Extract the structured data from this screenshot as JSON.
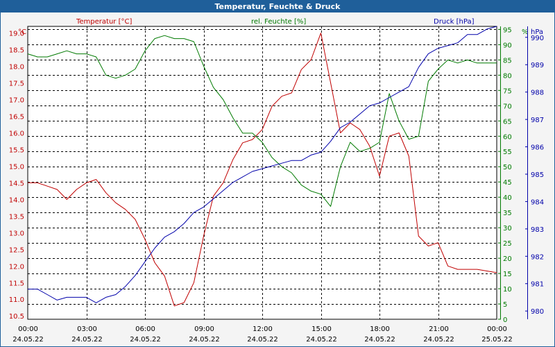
{
  "window_title": "Temperatur, Feuchte & Druck",
  "chart_data": {
    "type": "line",
    "title": "Temperatur, Feuchte & Druck",
    "x_ticks": [
      {
        "time": "00:00",
        "date": "24.05.22"
      },
      {
        "time": "03:00",
        "date": "24.05.22"
      },
      {
        "time": "06:00",
        "date": "24.05.22"
      },
      {
        "time": "09:00",
        "date": "24.05.22"
      },
      {
        "time": "12:00",
        "date": "24.05.22"
      },
      {
        "time": "15:00",
        "date": "24.05.22"
      },
      {
        "time": "18:00",
        "date": "24.05.22"
      },
      {
        "time": "21:00",
        "date": "24.05.22"
      },
      {
        "time": "00:00",
        "date": "25.05.22"
      }
    ],
    "grid": true,
    "axes": {
      "temperature": {
        "label": "Temperatur [°C]",
        "unit": "°C",
        "range": [
          10.4,
          19.2
        ],
        "ticks": [
          "10.5",
          "11.0",
          "11.5",
          "12.0",
          "12.5",
          "13.0",
          "13.5",
          "14.0",
          "14.5",
          "15.0",
          "15.5",
          "16.0",
          "16.5",
          "17.0",
          "17.5",
          "18.0",
          "18.5",
          "19.0"
        ],
        "color": "#c00000",
        "position": "left"
      },
      "humidity": {
        "label": "rel. Feuchte [%]",
        "unit": "%",
        "range": [
          0,
          96
        ],
        "ticks": [
          "0",
          "5",
          "10",
          "15",
          "20",
          "25",
          "30",
          "35",
          "40",
          "45",
          "50",
          "55",
          "60",
          "65",
          "70",
          "75",
          "80",
          "85",
          "90",
          "95"
        ],
        "color": "#007a00",
        "position": "right-inner"
      },
      "pressure": {
        "label": "Druck [hPa]",
        "unit": "hPa",
        "range": [
          979.7,
          990.4
        ],
        "ticks": [
          "980",
          "981",
          "982",
          "983",
          "984",
          "985",
          "986",
          "987",
          "988",
          "989",
          "990"
        ],
        "color": "#0000aa",
        "position": "right-outer"
      }
    },
    "series": [
      {
        "name": "Temperatur [°C]",
        "axis": "temperature",
        "color": "#c00000",
        "x": [
          "00:00",
          "00:30",
          "01:00",
          "01:30",
          "02:00",
          "02:30",
          "03:00",
          "03:30",
          "04:00",
          "04:30",
          "05:00",
          "05:30",
          "06:00",
          "06:30",
          "07:00",
          "07:30",
          "08:00",
          "08:30",
          "09:00",
          "09:30",
          "10:00",
          "10:30",
          "11:00",
          "11:30",
          "12:00",
          "12:30",
          "13:00",
          "13:30",
          "14:00",
          "14:30",
          "15:00",
          "15:30",
          "16:00",
          "16:30",
          "17:00",
          "17:30",
          "18:00",
          "18:30",
          "19:00",
          "19:30",
          "20:00",
          "20:30",
          "21:00",
          "21:30",
          "22:00",
          "22:30",
          "23:00",
          "23:30",
          "24:00"
        ],
        "values": [
          14.5,
          14.5,
          14.4,
          14.3,
          14.0,
          14.3,
          14.5,
          14.6,
          14.2,
          13.9,
          13.7,
          13.4,
          12.8,
          12.1,
          11.7,
          10.8,
          10.9,
          11.5,
          12.9,
          14.1,
          14.5,
          15.2,
          15.7,
          15.8,
          16.1,
          16.8,
          17.1,
          17.2,
          17.9,
          18.2,
          19.0,
          17.5,
          16.0,
          16.3,
          16.1,
          15.6,
          14.7,
          15.9,
          16.0,
          15.3,
          12.9,
          12.6,
          12.7,
          12.0,
          11.9,
          11.9,
          11.9,
          11.85,
          11.8
        ]
      },
      {
        "name": "rel. Feuchte [%]",
        "axis": "humidity",
        "color": "#007a00",
        "x": [
          "00:00",
          "00:30",
          "01:00",
          "01:30",
          "02:00",
          "02:30",
          "03:00",
          "03:30",
          "04:00",
          "04:30",
          "05:00",
          "05:30",
          "06:00",
          "06:30",
          "07:00",
          "07:30",
          "08:00",
          "08:30",
          "09:00",
          "09:30",
          "10:00",
          "10:30",
          "11:00",
          "11:30",
          "12:00",
          "12:30",
          "13:00",
          "13:30",
          "14:00",
          "14:30",
          "15:00",
          "15:30",
          "16:00",
          "16:30",
          "17:00",
          "17:30",
          "18:00",
          "18:30",
          "19:00",
          "19:30",
          "20:00",
          "20:30",
          "21:00",
          "21:30",
          "22:00",
          "22:30",
          "23:00",
          "23:30",
          "24:00"
        ],
        "values": [
          87,
          86,
          86,
          87,
          88,
          87,
          87,
          86,
          80,
          79,
          80,
          82,
          88,
          92,
          93,
          92,
          92,
          91,
          83,
          76,
          72,
          66,
          61,
          61,
          58,
          53,
          50,
          48,
          44,
          42,
          41,
          37,
          50,
          58,
          55,
          56,
          58,
          74,
          65,
          59,
          60,
          78,
          82,
          85,
          84,
          85,
          84,
          84,
          84
        ]
      },
      {
        "name": "Druck [hPa]",
        "axis": "pressure",
        "color": "#0000aa",
        "x": [
          "00:00",
          "00:30",
          "01:00",
          "01:30",
          "02:00",
          "02:30",
          "03:00",
          "03:30",
          "04:00",
          "04:30",
          "05:00",
          "05:30",
          "06:00",
          "06:30",
          "07:00",
          "07:30",
          "08:00",
          "08:30",
          "09:00",
          "09:30",
          "10:00",
          "10:30",
          "11:00",
          "11:30",
          "12:00",
          "12:30",
          "13:00",
          "13:30",
          "14:00",
          "14:30",
          "15:00",
          "15:30",
          "16:00",
          "16:30",
          "17:00",
          "17:30",
          "18:00",
          "18:30",
          "19:00",
          "19:30",
          "20:00",
          "20:30",
          "21:00",
          "21:30",
          "22:00",
          "22:30",
          "23:00",
          "23:30",
          "24:00"
        ],
        "values": [
          980.8,
          980.8,
          980.6,
          980.4,
          980.5,
          980.5,
          980.5,
          980.3,
          980.5,
          980.6,
          980.9,
          981.3,
          981.8,
          982.3,
          982.7,
          982.9,
          983.2,
          983.6,
          983.8,
          984.1,
          984.4,
          984.7,
          984.9,
          985.1,
          985.2,
          985.3,
          985.4,
          985.5,
          985.5,
          985.7,
          985.8,
          986.2,
          986.7,
          986.9,
          987.2,
          987.5,
          987.6,
          987.8,
          988.0,
          988.2,
          988.9,
          989.4,
          989.6,
          989.7,
          989.8,
          990.1,
          990.1,
          990.3,
          990.4
        ]
      }
    ]
  }
}
